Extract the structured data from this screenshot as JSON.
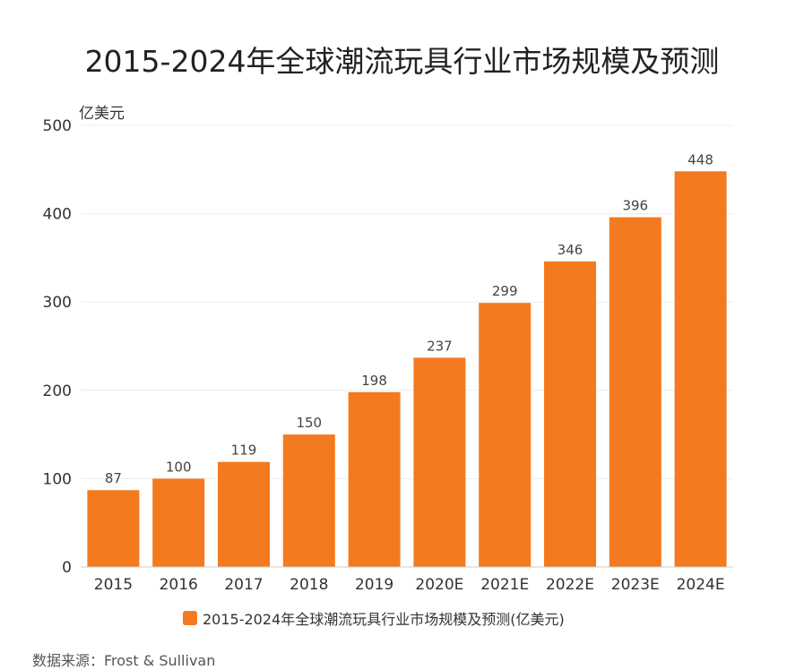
{
  "title": "2015-2024年全球潮流玩具行业市场规模及预测",
  "source": "数据来源：Frost & Sullivan",
  "colors": {
    "bar": "#F47A20",
    "grid": "#EDEDED",
    "axis": "#CCCCCC"
  },
  "chart_data": {
    "type": "bar",
    "categories": [
      "2015",
      "2016",
      "2017",
      "2018",
      "2019",
      "2020E",
      "2021E",
      "2022E",
      "2023E",
      "2024E"
    ],
    "series": [
      {
        "name": "2015-2024年全球潮流玩具行业市场规模及预测(亿美元)",
        "values": [
          87,
          100,
          119,
          150,
          198,
          237,
          299,
          346,
          396,
          448
        ]
      }
    ],
    "ylabel": "亿美元",
    "ylim": [
      0,
      500
    ],
    "yticks": [
      0,
      100,
      200,
      300,
      400,
      500
    ],
    "grid": true,
    "legend": "bottom-center"
  }
}
